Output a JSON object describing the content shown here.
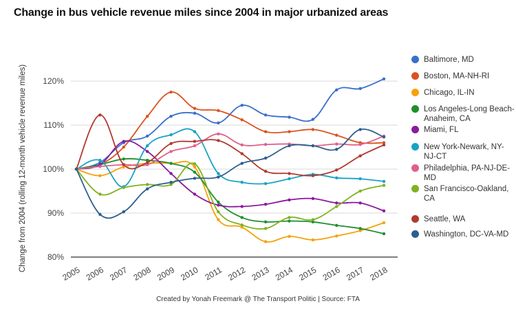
{
  "title": "Change in bus vehicle revenue miles since 2004 in major urbanized areas",
  "credit": "Created by Yonah Freemark @ The Transport Politic | Source: FTA",
  "chart_data": {
    "type": "line",
    "title": "Change in bus vehicle revenue miles since 2004 in major urbanized areas",
    "xlabel": "",
    "ylabel": "Change from 2004 (rolling 12-month vehicle revenue miles)",
    "x": [
      "2005",
      "2006",
      "2007",
      "2008",
      "2009",
      "2010",
      "2011",
      "2012",
      "2013",
      "2014",
      "2015",
      "2016",
      "2017",
      "2018"
    ],
    "yticks": [
      "80%",
      "90%",
      "100%",
      "110%",
      "120%"
    ],
    "ytick_values": [
      80,
      90,
      100,
      110,
      120
    ],
    "ylim": [
      80,
      123
    ],
    "grid": true,
    "legend_position": "right",
    "series": [
      {
        "name": "Baltimore, MD",
        "color": "#3a6fcc",
        "values": [
          100,
          101.5,
          106,
          107.5,
          112,
          112.7,
          110.5,
          114.5,
          112.3,
          111.8,
          111.3,
          118,
          118.3,
          120.5
        ]
      },
      {
        "name": "Boston, MA-NH-RI",
        "color": "#d9541e",
        "values": [
          100,
          101,
          105,
          112,
          117.5,
          113.8,
          113.3,
          111.2,
          108.5,
          108.5,
          109,
          107.7,
          106,
          106
        ]
      },
      {
        "name": "Chicago, IL-IN",
        "color": "#f5a20d",
        "values": [
          100,
          98.5,
          100.5,
          101.3,
          101.3,
          100.5,
          88.5,
          86.8,
          83.5,
          84.7,
          83.9,
          84.8,
          86,
          87.8
        ]
      },
      {
        "name": "Los Angeles-Long Beach-Anaheim, CA",
        "color": "#1f8f2c",
        "values": [
          100,
          101,
          102.3,
          102,
          101.3,
          99.3,
          92.5,
          89,
          88,
          88.2,
          88,
          87.2,
          86.5,
          85.3
        ]
      },
      {
        "name": "Miami, FL",
        "color": "#8a1a9b",
        "values": [
          100,
          101,
          106.3,
          104,
          99,
          94.3,
          91.8,
          91.5,
          92,
          93,
          93.3,
          92.3,
          92.3,
          90.5
        ]
      },
      {
        "name": "New York-Newark, NY-NJ-CT",
        "color": "#19a3c4",
        "values": [
          100,
          102,
          96,
          105.3,
          107.8,
          108.5,
          99,
          97,
          96.7,
          97.8,
          98.8,
          98,
          97.8,
          97.2
        ]
      },
      {
        "name": "Philadelphia, PA-NJ-DE-MD",
        "color": "#e0608a",
        "values": [
          100,
          100.6,
          101,
          101,
          104,
          105.3,
          108,
          105.5,
          105.6,
          105.7,
          105.3,
          105.7,
          105.6,
          107.5
        ]
      },
      {
        "name": "San Francisco-Oakland, CA",
        "color": "#7fb21f",
        "values": [
          100,
          94.3,
          95.8,
          96.5,
          96.5,
          101.2,
          90.3,
          87.3,
          86.5,
          89,
          88.5,
          91.5,
          95,
          96.3
        ]
      },
      {
        "name": "Seattle, WA",
        "color": "#b03a2e",
        "values": [
          100,
          112.3,
          101,
          101.5,
          105.8,
          106.3,
          106.5,
          103.5,
          99.5,
          99,
          98.5,
          99.8,
          103,
          105.5
        ]
      },
      {
        "name": "Washington, DC-VA-MD",
        "color": "#2c5f8f",
        "values": [
          100,
          89.7,
          90.3,
          95.5,
          97,
          97.9,
          98.2,
          101.3,
          102.5,
          105.3,
          105.3,
          104.5,
          109,
          107.3
        ]
      }
    ]
  }
}
